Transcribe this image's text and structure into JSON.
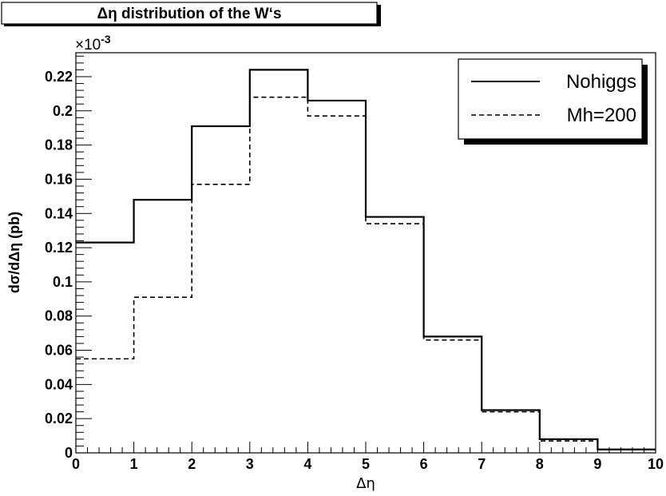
{
  "chart_data": {
    "type": "line",
    "step": true,
    "title": "Δη distribution of the W‘s",
    "xlabel": "Δη",
    "ylabel": "dσ/dΔη  (pb)",
    "exponent_label": "×10",
    "exponent_power": "-3",
    "xlim": [
      0,
      10
    ],
    "ylim": [
      0,
      0.234
    ],
    "x_ticks": [
      0,
      1,
      2,
      3,
      4,
      5,
      6,
      7,
      8,
      9,
      10
    ],
    "x_tick_labels": [
      "0",
      "1",
      "2",
      "3",
      "4",
      "5",
      "6",
      "7",
      "8",
      "9",
      "10"
    ],
    "y_ticks": [
      0,
      0.02,
      0.04,
      0.06,
      0.08,
      0.1,
      0.12,
      0.14,
      0.16,
      0.18,
      0.2,
      0.22
    ],
    "y_tick_labels": [
      "0",
      "0.02",
      "0.04",
      "0.06",
      "0.08",
      "0.1",
      "0.12",
      "0.14",
      "0.16",
      "0.18",
      "0.2",
      "0.22"
    ],
    "bin_edges": [
      0,
      1,
      2,
      3,
      4,
      5,
      6,
      7,
      8,
      9,
      10
    ],
    "series": [
      {
        "name": "Nohiggs",
        "style": "solid",
        "values": [
          0.123,
          0.148,
          0.191,
          0.224,
          0.206,
          0.138,
          0.068,
          0.025,
          0.008,
          0.002
        ]
      },
      {
        "name": "Mh=200",
        "style": "dashed",
        "values": [
          0.055,
          0.091,
          0.157,
          0.208,
          0.197,
          0.134,
          0.066,
          0.024,
          0.007,
          0.002
        ]
      }
    ],
    "legend_position": "top-right",
    "grid": false
  }
}
